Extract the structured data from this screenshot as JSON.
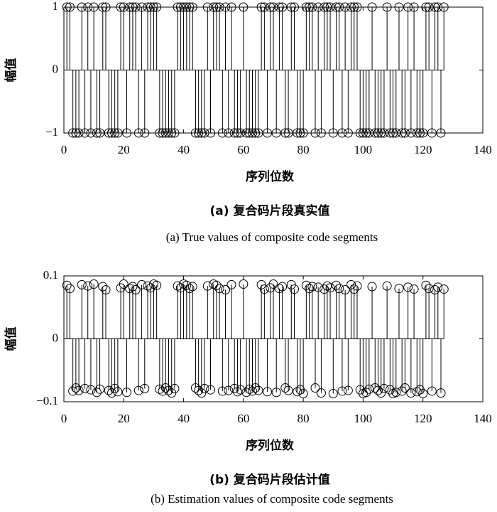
{
  "chart_data": [
    {
      "type": "stem",
      "x": [
        1,
        2,
        3,
        4,
        5,
        6,
        7,
        8,
        9,
        10,
        11,
        12,
        13,
        14,
        15,
        16,
        17,
        18,
        19,
        20,
        21,
        22,
        23,
        24,
        25,
        26,
        27,
        28,
        29,
        30,
        31,
        32,
        33,
        34,
        35,
        36,
        37,
        38,
        39,
        40,
        41,
        42,
        43,
        44,
        45,
        46,
        47,
        48,
        49,
        50,
        51,
        52,
        53,
        54,
        55,
        56,
        57,
        58,
        59,
        60,
        61,
        62,
        63,
        64,
        65,
        66,
        67,
        68,
        69,
        70,
        71,
        72,
        73,
        74,
        75,
        76,
        77,
        78,
        79,
        80,
        81,
        82,
        83,
        84,
        85,
        86,
        87,
        88,
        89,
        90,
        91,
        92,
        93,
        94,
        95,
        96,
        97,
        98,
        99,
        100,
        101,
        102,
        103,
        104,
        105,
        106,
        107,
        108,
        109,
        110,
        111,
        112,
        113,
        114,
        115,
        116,
        117,
        118,
        119,
        120,
        121,
        122,
        123,
        124,
        125,
        126,
        127
      ],
      "values": [
        1,
        1,
        -1,
        -1,
        -1,
        1,
        -1,
        1,
        -1,
        1,
        -1,
        -1,
        1,
        1,
        -1,
        -1,
        -1,
        -1,
        1,
        1,
        -1,
        1,
        1,
        1,
        -1,
        1,
        -1,
        1,
        1,
        1,
        1,
        -1,
        -1,
        -1,
        -1,
        -1,
        -1,
        1,
        1,
        1,
        1,
        1,
        1,
        -1,
        -1,
        -1,
        -1,
        1,
        -1,
        1,
        1,
        1,
        -1,
        1,
        -1,
        1,
        -1,
        -1,
        -1,
        1,
        -1,
        -1,
        -1,
        -1,
        -1,
        1,
        1,
        -1,
        1,
        1,
        -1,
        1,
        1,
        -1,
        -1,
        1,
        1,
        -1,
        -1,
        -1,
        1,
        1,
        1,
        -1,
        1,
        -1,
        1,
        1,
        1,
        -1,
        1,
        1,
        -1,
        1,
        -1,
        1,
        1,
        1,
        -1,
        -1,
        -1,
        -1,
        1,
        -1,
        -1,
        -1,
        -1,
        1,
        -1,
        -1,
        -1,
        1,
        -1,
        -1,
        1,
        -1,
        1,
        -1,
        -1,
        -1,
        1,
        1,
        -1,
        1,
        1,
        -1,
        1
      ],
      "xlim": [
        0,
        140
      ],
      "xticks": [
        0,
        20,
        40,
        60,
        80,
        100,
        120,
        140
      ],
      "ylim": [
        -1,
        1
      ],
      "yticks": [
        {
          "value": -1,
          "label": "−1"
        },
        0,
        1
      ],
      "xlabel": "序列位数",
      "ylabel": "幅值",
      "caption": "(a) 复合码片段真实值",
      "subcaption": "(a) True values of composite code segments",
      "color": "#000000"
    },
    {
      "type": "stem",
      "x": [
        1,
        2,
        3,
        4,
        5,
        6,
        7,
        8,
        9,
        10,
        11,
        12,
        13,
        14,
        15,
        16,
        17,
        18,
        19,
        20,
        21,
        22,
        23,
        24,
        25,
        26,
        27,
        28,
        29,
        30,
        31,
        32,
        33,
        34,
        35,
        36,
        37,
        38,
        39,
        40,
        41,
        42,
        43,
        44,
        45,
        46,
        47,
        48,
        49,
        50,
        51,
        52,
        53,
        54,
        55,
        56,
        57,
        58,
        59,
        60,
        61,
        62,
        63,
        64,
        65,
        66,
        67,
        68,
        69,
        70,
        71,
        72,
        73,
        74,
        75,
        76,
        77,
        78,
        79,
        80,
        81,
        82,
        83,
        84,
        85,
        86,
        87,
        88,
        89,
        90,
        91,
        92,
        93,
        94,
        95,
        96,
        97,
        98,
        99,
        100,
        101,
        102,
        103,
        104,
        105,
        106,
        107,
        108,
        109,
        110,
        111,
        112,
        113,
        114,
        115,
        116,
        117,
        118,
        119,
        120,
        121,
        122,
        123,
        124,
        125,
        126,
        127
      ],
      "values": [
        0.085,
        0.08,
        -0.083,
        -0.078,
        -0.082,
        0.086,
        -0.079,
        0.084,
        -0.081,
        0.087,
        -0.085,
        -0.08,
        0.083,
        0.078,
        -0.082,
        -0.086,
        -0.079,
        -0.084,
        0.081,
        0.087,
        -0.085,
        0.08,
        0.083,
        0.078,
        -0.082,
        0.086,
        -0.079,
        0.084,
        0.081,
        0.087,
        0.085,
        -0.08,
        -0.083,
        -0.078,
        -0.082,
        -0.086,
        -0.079,
        0.084,
        0.081,
        0.087,
        0.085,
        0.08,
        0.083,
        -0.078,
        -0.082,
        -0.086,
        -0.079,
        0.084,
        -0.081,
        0.087,
        0.085,
        0.08,
        -0.083,
        0.078,
        -0.082,
        0.086,
        -0.079,
        -0.084,
        -0.081,
        0.087,
        -0.085,
        -0.08,
        -0.083,
        -0.078,
        -0.082,
        0.086,
        0.079,
        -0.084,
        0.081,
        0.087,
        -0.085,
        0.08,
        0.083,
        -0.078,
        -0.082,
        0.086,
        0.079,
        -0.084,
        -0.081,
        -0.087,
        0.085,
        0.08,
        0.083,
        -0.078,
        0.082,
        -0.086,
        0.079,
        0.084,
        0.081,
        -0.087,
        0.085,
        0.08,
        -0.083,
        0.078,
        -0.082,
        0.086,
        0.079,
        0.084,
        -0.081,
        -0.087,
        -0.085,
        -0.08,
        0.083,
        -0.078,
        -0.082,
        -0.086,
        -0.079,
        0.084,
        -0.081,
        -0.087,
        -0.085,
        0.08,
        -0.083,
        -0.078,
        0.082,
        -0.086,
        0.079,
        -0.084,
        -0.081,
        -0.087,
        0.085,
        0.08,
        -0.083,
        0.078,
        0.082,
        -0.086,
        0.079
      ],
      "xlim": [
        0,
        140
      ],
      "xticks": [
        0,
        20,
        40,
        60,
        80,
        100,
        120,
        140
      ],
      "ylim": [
        -0.1,
        0.1
      ],
      "yticks": [
        {
          "value": -0.1,
          "label": "−0.1"
        },
        0,
        0.1
      ],
      "xlabel": "序列位数",
      "ylabel": "幅值",
      "caption": "(b) 复合码片段估计值",
      "subcaption": "(b) Estimation values of composite code segments",
      "color": "#000000"
    }
  ]
}
